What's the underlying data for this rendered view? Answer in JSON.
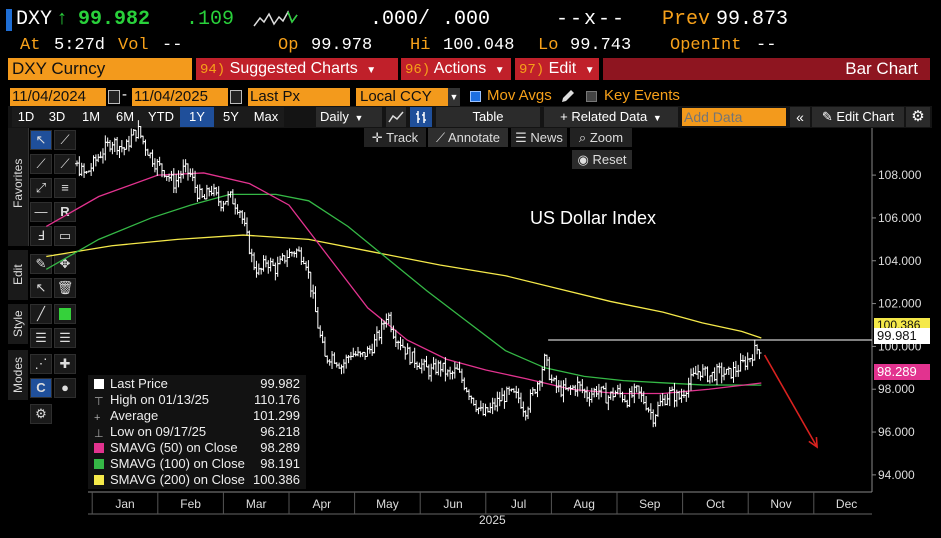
{
  "header": {
    "ticker": "DXY",
    "arrow": "↑",
    "last": "99.982",
    "change": ".109",
    "bid_ask": ".000/ .000",
    "size": "--x--",
    "prev_label": "Prev",
    "prev_value": "99.873",
    "at_label": "At",
    "at_time": "5:27d",
    "vol_label": "Vol",
    "vol_value": "--",
    "op_label": "Op",
    "op_value": "99.978",
    "hi_label": "Hi",
    "hi_value": "100.048",
    "lo_label": "Lo",
    "lo_value": "99.743",
    "openint_label": "OpenInt",
    "openint_value": "--"
  },
  "menubar": {
    "security": "DXY Curncy",
    "suggested_num": "94)",
    "suggested": "Suggested Charts",
    "actions_num": "96)",
    "actions": "Actions",
    "edit_num": "97)",
    "edit": "Edit",
    "chart_type": "Bar Chart"
  },
  "settings": {
    "start_date": "11/04/2024",
    "end_date": "11/04/2025",
    "field": "Last Px",
    "currency": "Local CCY",
    "mov_avgs": "Mov Avgs",
    "key_events": "Key Events"
  },
  "toolbar": {
    "periods": [
      "1D",
      "3D",
      "1M",
      "6M",
      "YTD",
      "1Y",
      "5Y",
      "Max"
    ],
    "selected_period": "1Y",
    "frequency": "Daily",
    "table": "Table",
    "related": "+ Related Data",
    "add_data_placeholder": "Add Data",
    "edit_chart": "Edit Chart"
  },
  "chart_tools": {
    "track": "Track",
    "annotate": "Annotate",
    "news": "News",
    "zoom": "Zoom",
    "reset": "Reset"
  },
  "sidebar": {
    "favorites": "Favorites",
    "edit": "Edit",
    "style": "Style",
    "modes": "Modes"
  },
  "legend": [
    {
      "label": "Last Price",
      "value": "99.982",
      "color": "#ffffff",
      "marker": "square"
    },
    {
      "label": "High on 01/13/25",
      "value": "110.176",
      "color": "#aaaaaa",
      "marker": "tick-up"
    },
    {
      "label": "Average",
      "value": "101.299",
      "color": "#aaaaaa",
      "marker": "tick-mid"
    },
    {
      "label": "Low on 09/17/25",
      "value": "96.218",
      "color": "#aaaaaa",
      "marker": "tick-down"
    },
    {
      "label": "SMAVG (50)  on Close",
      "value": "98.289",
      "color": "#e2338f",
      "marker": "square"
    },
    {
      "label": "SMAVG (100)  on Close",
      "value": "98.191",
      "color": "#35b846",
      "marker": "square"
    },
    {
      "label": "SMAVG (200)  on Close",
      "value": "100.386",
      "color": "#f5e94a",
      "marker": "square"
    }
  ],
  "right_tags": {
    "last": "99.981",
    "sma200": "100.386",
    "sma50": "98.289"
  },
  "chart_data": {
    "type": "bar",
    "title": "US Dollar Index",
    "x_year": "2025",
    "x_months": [
      "Jan",
      "Feb",
      "Mar",
      "Apr",
      "May",
      "Jun",
      "Jul",
      "Aug",
      "Sep",
      "Oct",
      "Nov",
      "Dec"
    ],
    "y_ticks": [
      "108.000",
      "106.000",
      "104.000",
      "102.000",
      "100.000",
      "98.000",
      "96.000",
      "94.000"
    ],
    "ylim": [
      93.2,
      110.2
    ],
    "y_tick_values": [
      108,
      106,
      104,
      102,
      100,
      98,
      96,
      94
    ],
    "x_month_index": [
      0,
      1,
      2,
      3,
      4,
      5,
      6,
      7,
      8,
      9,
      10,
      11
    ],
    "price_series": [
      [
        -1.2,
        108.9
      ],
      [
        -1.0,
        109.3
      ],
      [
        -0.8,
        108.6
      ],
      [
        -0.6,
        108.0
      ],
      [
        -0.4,
        108.9
      ],
      [
        -0.2,
        109.6
      ],
      [
        0.0,
        109.2
      ],
      [
        0.1,
        109.8
      ],
      [
        0.2,
        110.1
      ],
      [
        0.3,
        109.4
      ],
      [
        0.45,
        108.6
      ],
      [
        0.6,
        108.2
      ],
      [
        0.75,
        107.6
      ],
      [
        0.9,
        108.3
      ],
      [
        1.0,
        108.0
      ],
      [
        1.1,
        107.2
      ],
      [
        1.2,
        106.8
      ],
      [
        1.3,
        107.4
      ],
      [
        1.45,
        106.7
      ],
      [
        1.6,
        107.0
      ],
      [
        1.75,
        106.4
      ],
      [
        1.85,
        105.2
      ],
      [
        1.95,
        103.9
      ],
      [
        2.05,
        103.4
      ],
      [
        2.15,
        104.0
      ],
      [
        2.3,
        103.6
      ],
      [
        2.45,
        104.2
      ],
      [
        2.6,
        104.5
      ],
      [
        2.75,
        104.1
      ],
      [
        2.85,
        102.5
      ],
      [
        2.95,
        100.8
      ],
      [
        3.05,
        99.4
      ],
      [
        3.15,
        99.6
      ],
      [
        3.3,
        99.1
      ],
      [
        3.45,
        99.7
      ],
      [
        3.6,
        99.5
      ],
      [
        3.75,
        99.9
      ],
      [
        3.9,
        100.7
      ],
      [
        4.0,
        101.6
      ],
      [
        4.1,
        100.6
      ],
      [
        4.2,
        100.2
      ],
      [
        4.35,
        99.5
      ],
      [
        4.5,
        99.2
      ],
      [
        4.65,
        98.8
      ],
      [
        4.8,
        99.1
      ],
      [
        4.95,
        98.6
      ],
      [
        5.05,
        98.9
      ],
      [
        5.2,
        98.1
      ],
      [
        5.35,
        97.3
      ],
      [
        5.45,
        96.8
      ],
      [
        5.55,
        97.0
      ],
      [
        5.7,
        97.5
      ],
      [
        5.85,
        97.8
      ],
      [
        6.0,
        97.6
      ],
      [
        6.1,
        97.0
      ],
      [
        6.2,
        97.7
      ],
      [
        6.3,
        98.4
      ],
      [
        6.4,
        99.4
      ],
      [
        6.5,
        98.4
      ],
      [
        6.6,
        98.0
      ],
      [
        6.75,
        97.9
      ],
      [
        6.9,
        98.2
      ],
      [
        7.05,
        97.7
      ],
      [
        7.2,
        98.0
      ],
      [
        7.35,
        97.6
      ],
      [
        7.5,
        97.9
      ],
      [
        7.65,
        97.5
      ],
      [
        7.8,
        97.9
      ],
      [
        7.95,
        97.3
      ],
      [
        8.05,
        96.7
      ],
      [
        8.15,
        97.3
      ],
      [
        8.3,
        97.8
      ],
      [
        8.45,
        97.6
      ],
      [
        8.6,
        98.3
      ],
      [
        8.75,
        98.9
      ],
      [
        8.9,
        98.6
      ],
      [
        9.05,
        98.8
      ],
      [
        9.2,
        98.7
      ],
      [
        9.35,
        99.0
      ],
      [
        9.5,
        99.4
      ],
      [
        9.6,
        99.8
      ],
      [
        9.7,
        99.98
      ]
    ],
    "sma50": [
      [
        -1.2,
        105.6
      ],
      [
        -0.4,
        107.0
      ],
      [
        0.5,
        108.0
      ],
      [
        1.2,
        108.1
      ],
      [
        1.9,
        107.6
      ],
      [
        2.5,
        106.6
      ],
      [
        3.1,
        104.2
      ],
      [
        3.7,
        101.8
      ],
      [
        4.3,
        100.3
      ],
      [
        4.9,
        99.4
      ],
      [
        5.5,
        98.9
      ],
      [
        6.1,
        98.5
      ],
      [
        6.8,
        98.0
      ],
      [
        7.5,
        97.8
      ],
      [
        8.2,
        97.8
      ],
      [
        8.9,
        98.0
      ],
      [
        9.7,
        98.29
      ]
    ],
    "sma100": [
      [
        -1.2,
        103.6
      ],
      [
        -0.4,
        105.0
      ],
      [
        0.4,
        106.0
      ],
      [
        1.0,
        106.6
      ],
      [
        1.6,
        107.1
      ],
      [
        2.3,
        107.1
      ],
      [
        2.8,
        106.8
      ],
      [
        3.4,
        105.6
      ],
      [
        4.0,
        104.1
      ],
      [
        4.6,
        102.6
      ],
      [
        5.2,
        101.2
      ],
      [
        5.8,
        99.8
      ],
      [
        6.4,
        99.0
      ],
      [
        7.0,
        98.6
      ],
      [
        7.6,
        98.4
      ],
      [
        8.2,
        98.3
      ],
      [
        8.8,
        98.2
      ],
      [
        9.7,
        98.19
      ]
    ],
    "sma200": [
      [
        -1.2,
        104.2
      ],
      [
        -0.2,
        104.7
      ],
      [
        0.8,
        105.0
      ],
      [
        1.8,
        105.2
      ],
      [
        2.8,
        105.0
      ],
      [
        3.8,
        104.4
      ],
      [
        4.8,
        103.8
      ],
      [
        5.8,
        103.3
      ],
      [
        6.6,
        102.7
      ],
      [
        7.4,
        102.1
      ],
      [
        8.2,
        101.6
      ],
      [
        8.8,
        101.1
      ],
      [
        9.4,
        100.7
      ],
      [
        9.7,
        100.39
      ]
    ],
    "resistance_level": 100.3,
    "resistance_from_month": 6.45,
    "projection": {
      "from": [
        9.75,
        99.6
      ],
      "to": [
        10.55,
        95.3
      ]
    }
  }
}
